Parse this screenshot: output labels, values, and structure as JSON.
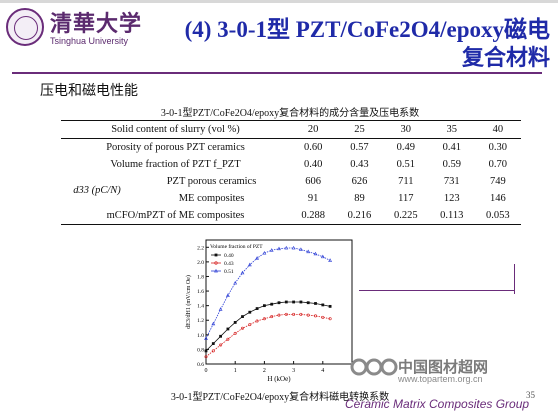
{
  "header": {
    "logo_cn": "清華大学",
    "logo_en": "Tsinghua University",
    "title_line1": "(4) 3-0-1型 PZT/CoFe2O4/epoxy磁电",
    "title_line2": "复合材料"
  },
  "section_heading": "压电和磁电性能",
  "table": {
    "caption": "3-0-1型PZT/CoFe2O4/epoxy复合材料的成分含量及压电系数",
    "header_label": "Solid content of slurry (vol %)",
    "columns": [
      "20",
      "25",
      "30",
      "35",
      "40"
    ],
    "rows": [
      {
        "label": "Porosity of porous PZT ceramics",
        "values": [
          "0.60",
          "0.57",
          "0.49",
          "0.41",
          "0.30"
        ]
      },
      {
        "label": "Volume fraction of PZT f_PZT",
        "values": [
          "0.40",
          "0.43",
          "0.51",
          "0.59",
          "0.70"
        ]
      },
      {
        "group": "d33 (pC/N)",
        "label": "PZT porous ceramics",
        "values": [
          "606",
          "626",
          "711",
          "731",
          "749"
        ]
      },
      {
        "label": "ME composites",
        "values": [
          "91",
          "89",
          "117",
          "123",
          "146"
        ]
      },
      {
        "label": "mCFO/mPZT of ME composites",
        "values": [
          "0.288",
          "0.216",
          "0.225",
          "0.113",
          "0.053"
        ]
      }
    ]
  },
  "chart_data": {
    "type": "line",
    "legend_title": "Volume fraction of PZT",
    "xlabel": "H (kOe)",
    "ylabel": "dE3/dH1 (mV/cm Oe)",
    "xlim": [
      0,
      5
    ],
    "ylim": [
      0.6,
      2.3
    ],
    "x_ticks": [
      "0",
      "1",
      "2",
      "3",
      "4"
    ],
    "y_ticks": [
      "0.6",
      "0.8",
      "1.0",
      "1.2",
      "1.4",
      "1.6",
      "1.8",
      "2.0",
      "2.2"
    ],
    "legend_position": "top-left",
    "series": [
      {
        "name": "0.40",
        "color": "#111111",
        "marker": "square",
        "x": [
          0.0,
          0.25,
          0.5,
          0.75,
          1.0,
          1.25,
          1.5,
          1.75,
          2.0,
          2.25,
          2.5,
          2.75,
          3.0,
          3.25,
          3.5,
          3.75,
          4.0,
          4.25
        ],
        "y": [
          0.78,
          0.88,
          0.98,
          1.08,
          1.17,
          1.25,
          1.31,
          1.36,
          1.4,
          1.42,
          1.44,
          1.45,
          1.45,
          1.45,
          1.44,
          1.43,
          1.41,
          1.39
        ]
      },
      {
        "name": "0.43",
        "color": "#d62020",
        "marker": "circle",
        "x": [
          0.0,
          0.25,
          0.5,
          0.75,
          1.0,
          1.25,
          1.5,
          1.75,
          2.0,
          2.25,
          2.5,
          2.75,
          3.0,
          3.25,
          3.5,
          3.75,
          4.0,
          4.25
        ],
        "y": [
          0.7,
          0.78,
          0.86,
          0.94,
          1.02,
          1.09,
          1.14,
          1.19,
          1.22,
          1.25,
          1.27,
          1.28,
          1.28,
          1.28,
          1.27,
          1.26,
          1.24,
          1.22
        ]
      },
      {
        "name": "0.51",
        "color": "#2d3fd6",
        "marker": "triangle",
        "x": [
          0.0,
          0.25,
          0.5,
          0.75,
          1.0,
          1.25,
          1.5,
          1.75,
          2.0,
          2.25,
          2.5,
          2.75,
          3.0,
          3.25,
          3.5,
          3.75,
          4.0,
          4.25
        ],
        "y": [
          0.95,
          1.15,
          1.35,
          1.54,
          1.71,
          1.85,
          1.96,
          2.05,
          2.12,
          2.16,
          2.18,
          2.19,
          2.19,
          2.17,
          2.14,
          2.11,
          2.07,
          2.02
        ]
      }
    ]
  },
  "figure_caption": "3-0-1型PZT/CoFe2O4/epoxy复合材料磁电转换系数",
  "watermark": {
    "cn": "中国图材超网",
    "url": "www.topartem.org.cn"
  },
  "footer": {
    "text": "Ceramic Matrix Composites Group",
    "page": "35"
  },
  "colors": {
    "title": "#1f2aa8",
    "accent": "#6a2c7a",
    "series_040": "#111111",
    "series_043": "#d62020",
    "series_051": "#2d3fd6"
  }
}
